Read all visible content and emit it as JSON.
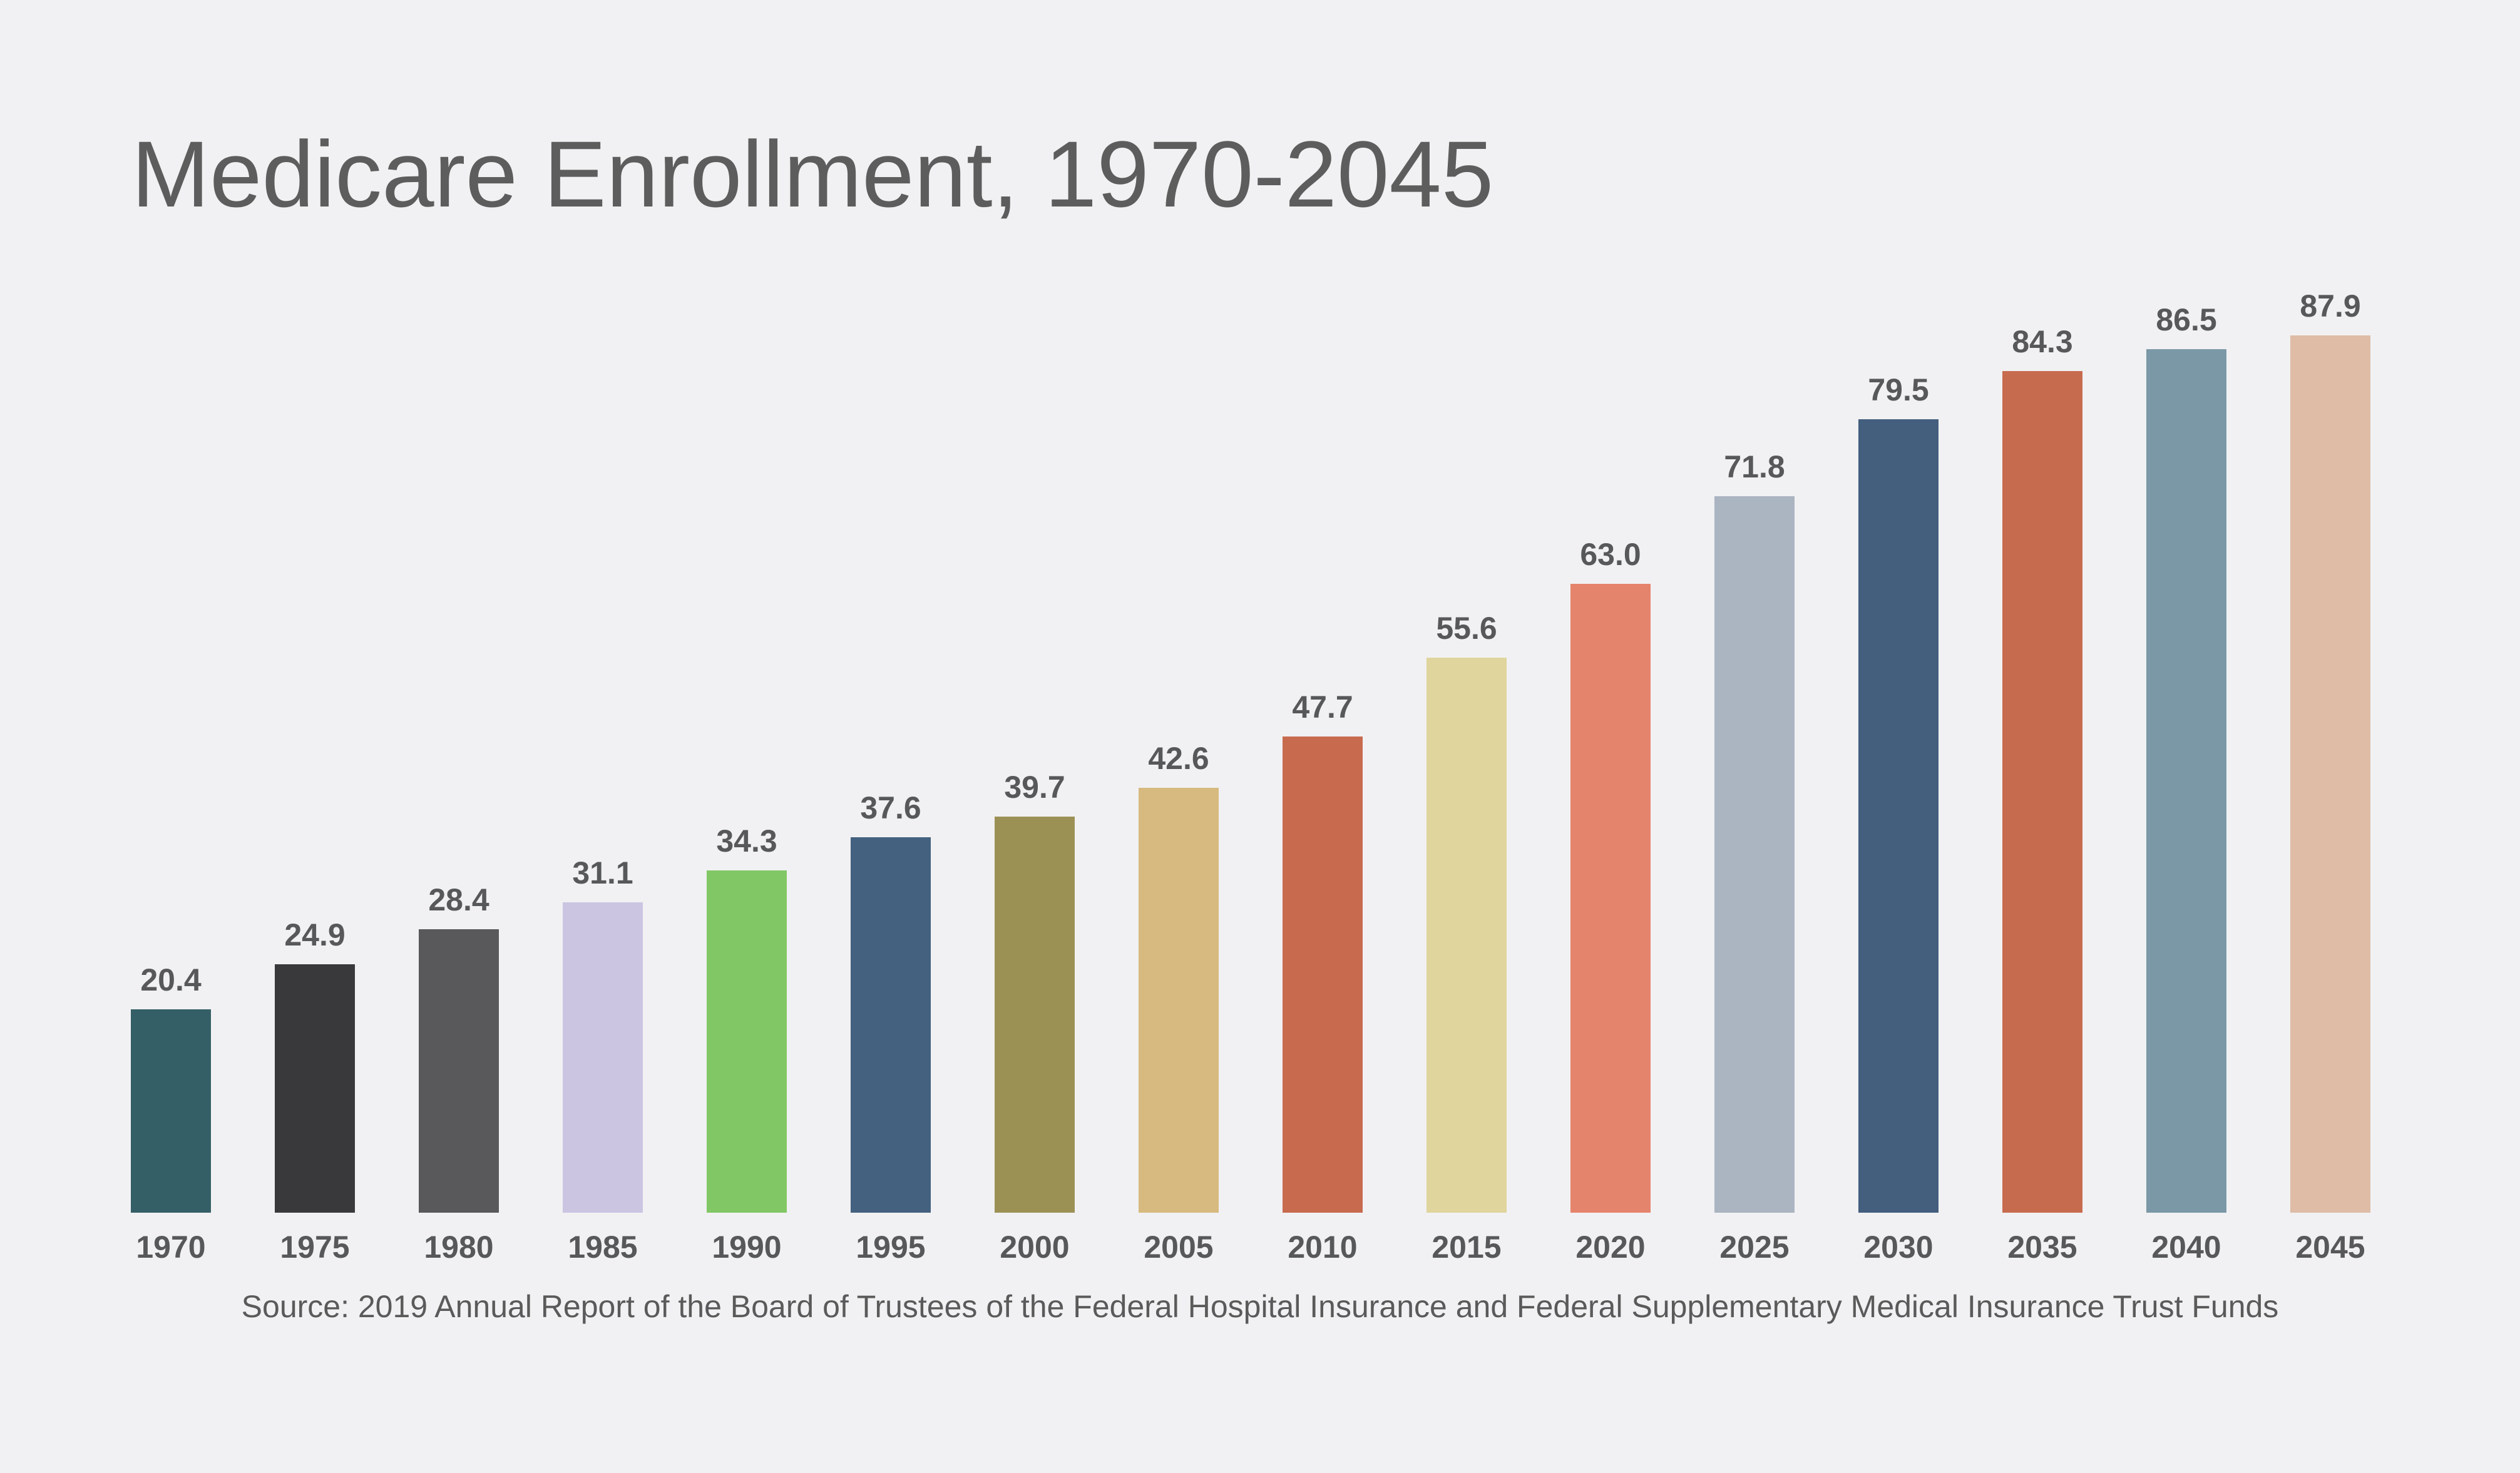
{
  "page": {
    "background": "#f1f1f3",
    "title_color": "#5d5d5d",
    "label_color": "#57585a",
    "source_color": "#5a5a5a"
  },
  "chart_data": {
    "type": "bar",
    "title": "Medicare Enrollment, 1970-2045",
    "categories": [
      "1970",
      "1975",
      "1980",
      "1985",
      "1990",
      "1995",
      "2000",
      "2005",
      "2010",
      "2015",
      "2020",
      "2025",
      "2030",
      "2035",
      "2040",
      "2045"
    ],
    "values": [
      20.4,
      24.9,
      28.4,
      31.1,
      34.3,
      37.6,
      39.7,
      42.6,
      47.7,
      55.6,
      63.0,
      71.8,
      79.5,
      84.3,
      86.5,
      87.9
    ],
    "value_labels": [
      "20.4",
      "24.9",
      "28.4",
      "31.1",
      "34.3",
      "37.6",
      "39.7",
      "42.6",
      "47.7",
      "55.6",
      "63.0",
      "71.8",
      "79.5",
      "84.3",
      "86.5",
      "87.9"
    ],
    "bar_colors": [
      "#355f66",
      "#39393b",
      "#59595b",
      "#cbc5e2",
      "#82c765",
      "#44617f",
      "#9c9155",
      "#d7ba7f",
      "#c76a4e",
      "#dfd59d",
      "#e5846c",
      "#abb4c1",
      "#445e7d",
      "#c76b4e",
      "#7b98a6",
      "#debca6"
    ],
    "source": "Source: 2019 Annual Report of the Board of Trustees of the Federal Hospital Insurance and Federal Supplementary Medical Insurance Trust Funds",
    "xlabel": "",
    "ylabel": "",
    "ylim": [
      0,
      88
    ],
    "grid": false,
    "legend": false,
    "layout": {
      "value_labels_position": "above-bars",
      "x_tick_labels_position": "below-bars",
      "y_axis_visible": false,
      "x_axis_line_visible": false
    }
  }
}
